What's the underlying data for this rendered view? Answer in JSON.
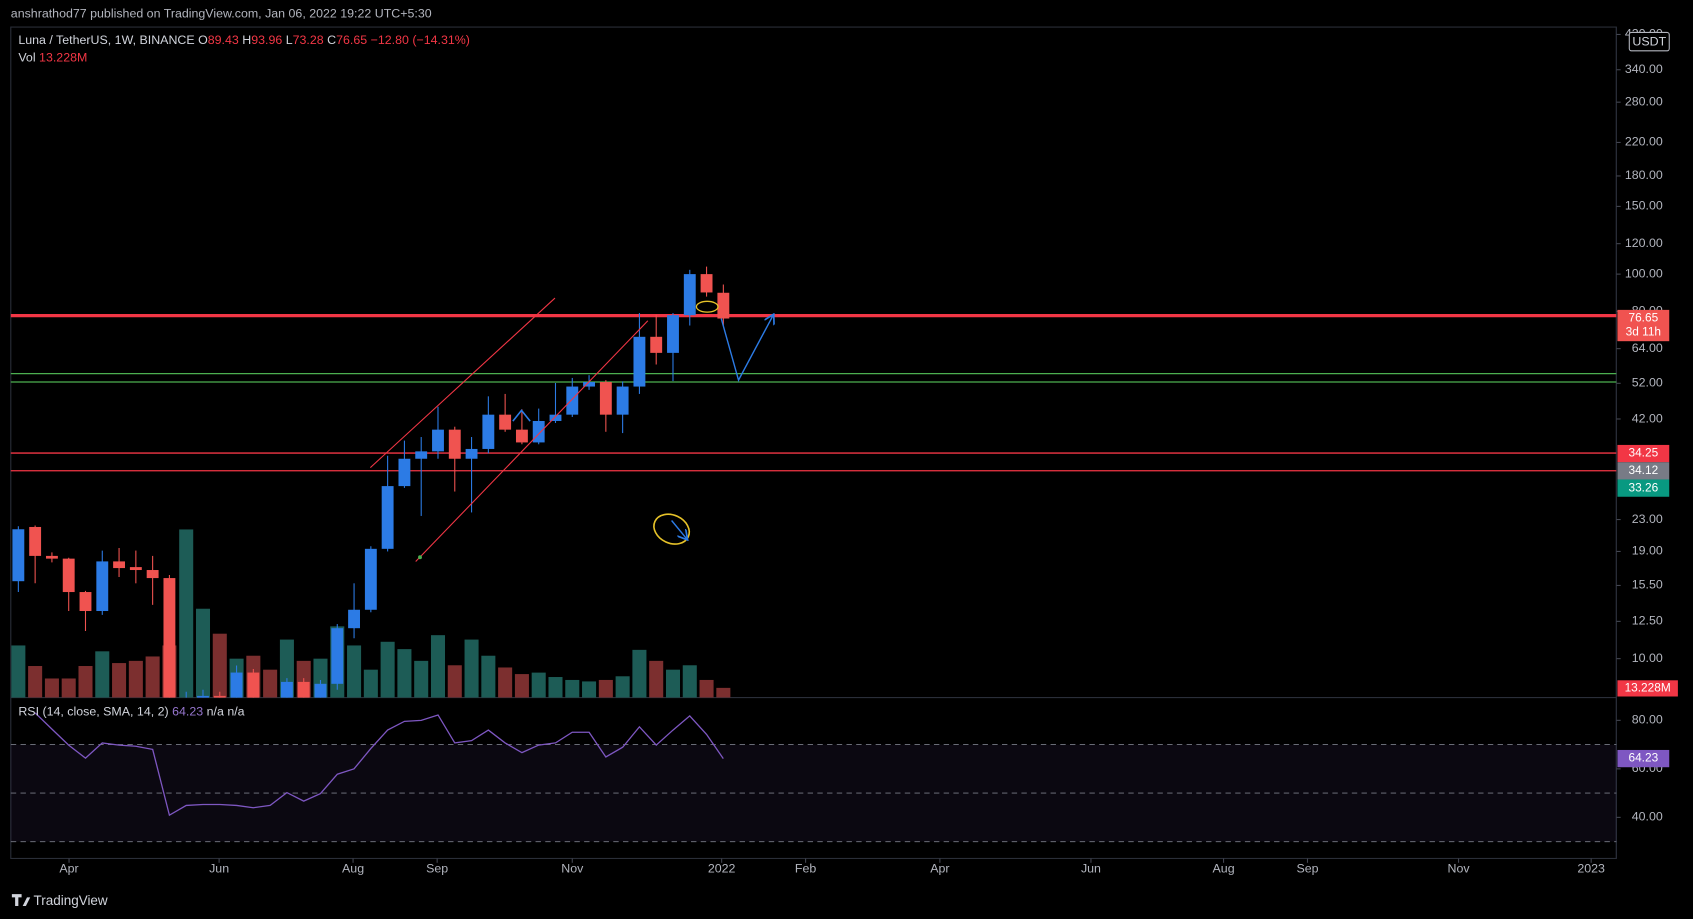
{
  "header": {
    "publisher": "anshrathod77 published on TradingView.com, Jan 06, 2022 19:22 UTC+5:30",
    "brand": "TradingView"
  },
  "chart_data": {
    "type": "candlestick",
    "symbol": "Luna / TetherUS, 1W, BINANCE",
    "ohlc_letters": [
      "O",
      "H",
      "L",
      "C"
    ],
    "change": {
      "value": -12.8,
      "label": "−12.80"
    },
    "change_pct": {
      "value": -14.31,
      "label": "(−14.31%)"
    },
    "currency": "USDT",
    "countdown": "3d 11h",
    "up_color": "#2c7be5",
    "down_color": "#f05350",
    "open": [
      15.9,
      22.0,
      18.5,
      18.2,
      14.9,
      13.3,
      17.9,
      17.3,
      17.0,
      16.2,
      6.0,
      7.4,
      8.0,
      7.0,
      9.2,
      7.5,
      6.8,
      8.7,
      7.8,
      8.6,
      12.0,
      13.4,
      19.3,
      28.1,
      33.1,
      34.6,
      39.4,
      33.1,
      35.1,
      43.1,
      39.4,
      36.5,
      41.5,
      43.1,
      51.0,
      52.4,
      43.1,
      51.0,
      68.7,
      62.4,
      78.2,
      100,
      89.43
    ],
    "high": [
      22.1,
      22.2,
      18.9,
      18.3,
      15.0,
      19.1,
      19.4,
      19.1,
      18.5,
      16.5,
      8.2,
      8.3,
      8.2,
      9.6,
      9.4,
      7.9,
      8.9,
      8.9,
      8.8,
      12.3,
      15.7,
      19.6,
      33.7,
      36.9,
      37.7,
      45.2,
      40.1,
      37.7,
      48.1,
      48.8,
      44.5,
      44.7,
      52.1,
      53.7,
      54.6,
      53.0,
      52.6,
      79.2,
      78.4,
      79.2,
      102.6,
      104.6,
      93.96
    ],
    "low": [
      14.9,
      15.7,
      17.8,
      13.3,
      11.8,
      13.0,
      16.3,
      15.7,
      13.8,
      4.5,
      4.8,
      6.0,
      6.5,
      6.6,
      6.4,
      5.7,
      6.2,
      7.2,
      7.5,
      8.3,
      11.3,
      13.2,
      19.0,
      27.8,
      23.5,
      33.1,
      27.2,
      24.0,
      34.2,
      38.9,
      36.1,
      36.1,
      41.0,
      42.5,
      50.0,
      38.9,
      38.6,
      48.8,
      58.2,
      52.7,
      73.5,
      87.4,
      73.28
    ],
    "close": [
      21.7,
      18.5,
      18.2,
      14.9,
      13.3,
      17.9,
      17.2,
      17.0,
      16.2,
      7.5,
      7.4,
      8.0,
      7.0,
      9.2,
      7.5,
      6.8,
      8.7,
      7.8,
      8.6,
      12.0,
      13.4,
      19.3,
      28.1,
      33.1,
      34.6,
      39.4,
      33.1,
      35.1,
      43.1,
      39.4,
      36.5,
      41.5,
      43.1,
      51.0,
      52.4,
      43.1,
      51.0,
      68.7,
      62.4,
      78.2,
      100,
      89.6,
      76.65
    ],
    "xlim": [
      -0.45,
      95.2
    ],
    "xticks": [
      {
        "value": 3.02,
        "label": "Apr"
      },
      {
        "value": 11.96,
        "label": "Jun"
      },
      {
        "value": 19.94,
        "label": "Aug"
      },
      {
        "value": 24.95,
        "label": "Sep"
      },
      {
        "value": 33.0,
        "label": "Nov"
      },
      {
        "value": 41.9,
        "label": "2022"
      },
      {
        "value": 46.9,
        "label": "Feb"
      },
      {
        "value": 54.9,
        "label": "Apr"
      },
      {
        "value": 63.9,
        "label": "Jun"
      },
      {
        "value": 71.8,
        "label": "Aug"
      },
      {
        "value": 76.8,
        "label": "Sep"
      },
      {
        "value": 85.8,
        "label": "Nov"
      },
      {
        "value": 93.7,
        "label": "2023"
      }
    ],
    "ylim": [
      7.92,
      439
    ],
    "log": true,
    "yticks": [
      {
        "value": 420,
        "label": "420.00"
      },
      {
        "value": 340,
        "label": "340.00"
      },
      {
        "value": 280,
        "label": "280.00"
      },
      {
        "value": 220,
        "label": "220.00"
      },
      {
        "value": 180,
        "label": "180.00"
      },
      {
        "value": 150,
        "label": "150.00"
      },
      {
        "value": 120,
        "label": "120.00"
      },
      {
        "value": 100,
        "label": "100.00"
      },
      {
        "value": 80,
        "label": "80.00"
      },
      {
        "value": 64,
        "label": "64.00"
      },
      {
        "value": 52,
        "label": "52.00"
      },
      {
        "value": 42,
        "label": "42.00"
      },
      {
        "value": 23,
        "label": "23.00"
      },
      {
        "value": 19,
        "label": "19.00"
      },
      {
        "value": 15.5,
        "label": "15.50"
      },
      {
        "value": 12.5,
        "label": "12.50"
      },
      {
        "value": 10,
        "label": "10.00"
      }
    ],
    "levels": [
      {
        "value": 78,
        "color": "#f23645"
      },
      {
        "value": 55.1,
        "color": "#4caf50"
      },
      {
        "value": 52.4,
        "color": "#4caf50"
      },
      {
        "value": 34.25,
        "color": "#f23645"
      },
      {
        "value": 30.8,
        "color": "#f23645"
      }
    ],
    "level_labels": [
      {
        "value": 34.25,
        "color": "#f23645"
      },
      {
        "value": 34.12,
        "color": "#787b86"
      },
      {
        "value": 33.26,
        "color": "#089981"
      }
    ],
    "volume": {
      "name": "Vol",
      "values": [
        71,
        43,
        26,
        26,
        43,
        63,
        47,
        50,
        56,
        71,
        229,
        121,
        87,
        53,
        57,
        38,
        79,
        50,
        53,
        97,
        71,
        38,
        76,
        66,
        50,
        85,
        44,
        79,
        57,
        41,
        32,
        34,
        28,
        24,
        22,
        24,
        29,
        65,
        50,
        38,
        44,
        24,
        13.228
      ],
      "last_label": "13.228M",
      "vlim": [
        0,
        300
      ],
      "up_color": "#1d5c56",
      "down_color": "#7c2f2f",
      "label_color": "#f23645"
    },
    "rsi": {
      "name": "RSI (14, close, SMA, 14, 2)",
      "values": [
        null,
        83.1,
        76.4,
        69.8,
        64.4,
        70.7,
        69.8,
        69.3,
        68,
        40.9,
        44.9,
        45.3,
        45.3,
        44.9,
        44,
        44.9,
        50.2,
        46.7,
        49.8,
        57.8,
        60,
        68.4,
        76,
        79.6,
        80,
        82.2,
        70.7,
        71.6,
        76,
        70.7,
        66.7,
        69.8,
        70.7,
        75.1,
        75.1,
        64.9,
        68.9,
        77.3,
        69.8,
        76,
        81.8,
        74.2,
        64.23
      ],
      "na": [
        "n/a",
        "n/a"
      ],
      "color": "#7e57c2",
      "ylim": [
        24.4,
        87.6
      ],
      "yticks": [
        {
          "value": 80,
          "label": "80.00"
        },
        {
          "value": 60,
          "label": "60.00"
        },
        {
          "value": 40,
          "label": "40.00"
        }
      ],
      "bands": [
        70,
        50,
        30
      ]
    }
  }
}
